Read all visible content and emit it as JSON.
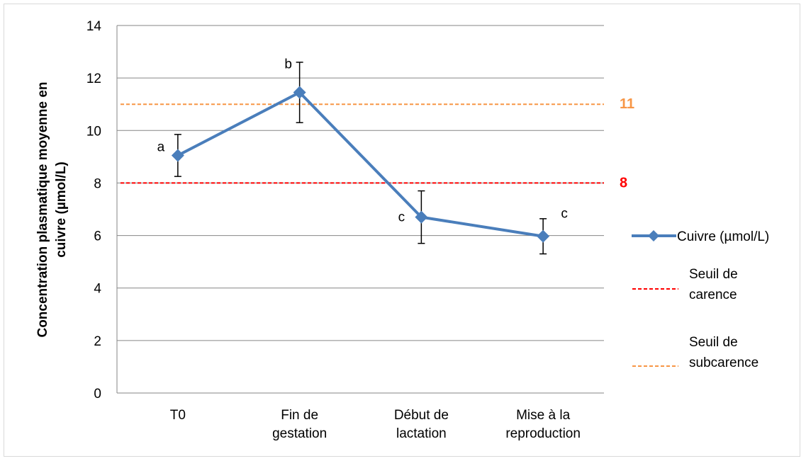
{
  "chart_data": {
    "type": "line",
    "categories": [
      [
        "T0"
      ],
      [
        "Fin de",
        "gestation"
      ],
      [
        "Début de",
        "lactation"
      ],
      [
        "Mise à la",
        "reproduction"
      ]
    ],
    "series": [
      {
        "name": "Cuivre (µmol/L)",
        "values": [
          9.05,
          11.45,
          6.7,
          5.97
        ],
        "error_plus": [
          0.8,
          1.15,
          1.0,
          0.67
        ],
        "error_minus": [
          0.8,
          1.15,
          1.0,
          0.67
        ],
        "point_labels": [
          "a",
          "b",
          "c",
          "c"
        ],
        "color": "#4a7ebb"
      }
    ],
    "reference_lines": [
      {
        "name": [
          "Seuil de",
          "carence"
        ],
        "value": 8,
        "label": "8",
        "color": "#ff0000"
      },
      {
        "name": [
          "Seuil de",
          "subcarence"
        ],
        "value": 11,
        "label": "11",
        "color": "#f79646"
      }
    ],
    "ylabel": [
      "Concentration plasmatique moyenne en",
      "cuivre (µmol/L)"
    ],
    "xlabel": "",
    "ylim": [
      0,
      14
    ],
    "yticks": [
      0,
      2,
      4,
      6,
      8,
      10,
      12,
      14
    ],
    "grid": true,
    "legend_position": "right"
  }
}
